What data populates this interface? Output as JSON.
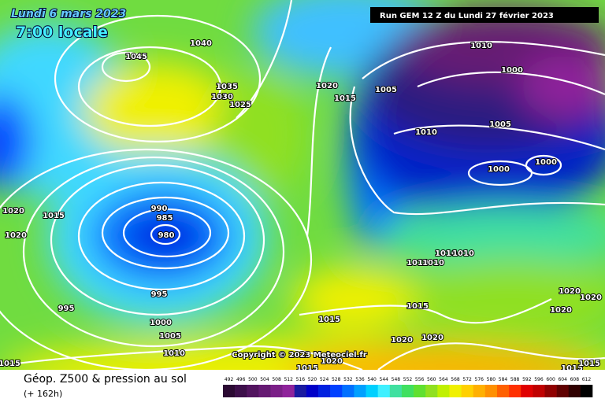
{
  "header": {
    "date": "Lundi 6 mars 2023",
    "time": "7:00 locale",
    "run": "Run GEM 12 Z du Lundi 27 février 2023"
  },
  "map": {
    "copyright": "Copyright © 2023 Meteociel.fr",
    "isobar_labels": [
      "1040",
      "1045",
      "1035",
      "1030",
      "1025",
      "1020",
      "1015",
      "1005",
      "1010",
      "1000",
      "1010",
      "1005",
      "1000",
      "1000",
      "990",
      "985",
      "980",
      "1020",
      "1015",
      "1020",
      "995",
      "995",
      "1000",
      "1005",
      "1010",
      "1015",
      "1010",
      "1010",
      "1010",
      "1010",
      "1015",
      "1015",
      "1020",
      "1020",
      "1020",
      "1015",
      "1020",
      "1020",
      "1020",
      "1015",
      "1015"
    ]
  },
  "footer": {
    "title": "Géop. Z500 & pression au sol",
    "lead": "(+ 162h)"
  },
  "legend": {
    "values": [
      492,
      496,
      500,
      504,
      508,
      512,
      516,
      520,
      524,
      528,
      532,
      536,
      540,
      544,
      548,
      552,
      556,
      560,
      564,
      568,
      572,
      576,
      580,
      584,
      588,
      592,
      596,
      600,
      604,
      608,
      612
    ],
    "colors": [
      "#2b0a33",
      "#3d0f4a",
      "#52145f",
      "#661a73",
      "#7b1f87",
      "#8f239b",
      "#1a1aa0",
      "#0000c8",
      "#0020e0",
      "#0040ff",
      "#0070ff",
      "#00a0ff",
      "#00d0ff",
      "#40f0ff",
      "#40e0a0",
      "#40e060",
      "#60e030",
      "#90e020",
      "#c0f000",
      "#f0f000",
      "#ffd000",
      "#ffb000",
      "#ff9000",
      "#ff6000",
      "#ff3000",
      "#e00000",
      "#c00000",
      "#900000",
      "#600000",
      "#300000",
      "#000000"
    ]
  }
}
